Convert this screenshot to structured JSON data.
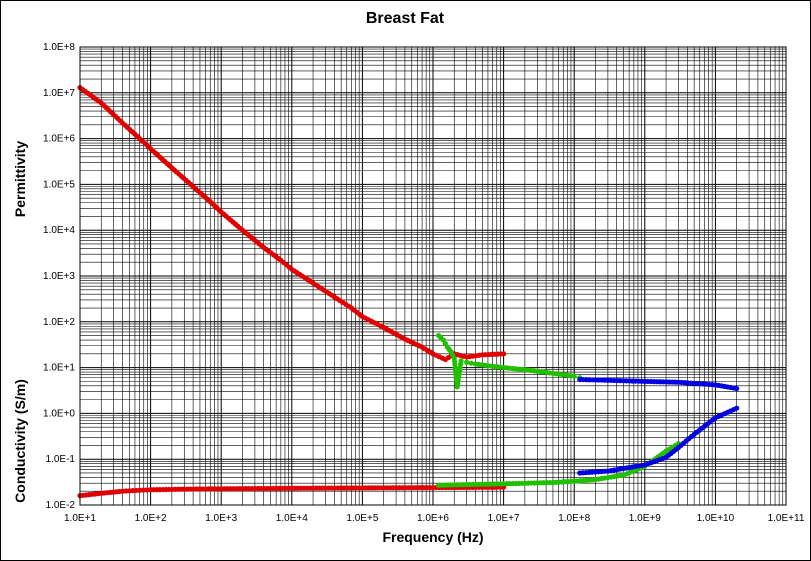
{
  "chart_data": {
    "type": "scatter",
    "title": "Breast Fat",
    "xlabel": "Frequency (Hz)",
    "ylabel_upper": "Permittivity",
    "ylabel_lower": "Conductivity (S/m)",
    "x_scale": "log",
    "y_scale": "log",
    "xlim": [
      10,
      100000000000
    ],
    "ylim": [
      0.01,
      100000000
    ],
    "x_ticks": [
      {
        "value": 10,
        "label": "1.0E+1"
      },
      {
        "value": 100,
        "label": "1.0E+2"
      },
      {
        "value": 1000,
        "label": "1.0E+3"
      },
      {
        "value": 10000,
        "label": "1.0E+4"
      },
      {
        "value": 100000,
        "label": "1.0E+5"
      },
      {
        "value": 1000000,
        "label": "1.0E+6"
      },
      {
        "value": 10000000,
        "label": "1.0E+7"
      },
      {
        "value": 100000000,
        "label": "1.0E+8"
      },
      {
        "value": 1000000000,
        "label": "1.0E+9"
      },
      {
        "value": 10000000000,
        "label": "1.0E+10"
      },
      {
        "value": 100000000000,
        "label": "1.0E+11"
      }
    ],
    "y_ticks": [
      {
        "value": 0.01,
        "label": "1.0E-2"
      },
      {
        "value": 0.1,
        "label": "1.0E-1"
      },
      {
        "value": 1,
        "label": "1.0E+0"
      },
      {
        "value": 10,
        "label": "1.0E+1"
      },
      {
        "value": 100,
        "label": "1.0E+2"
      },
      {
        "value": 1000,
        "label": "1.0E+3"
      },
      {
        "value": 10000,
        "label": "1.0E+4"
      },
      {
        "value": 100000,
        "label": "1.0E+5"
      },
      {
        "value": 1000000,
        "label": "1.0E+6"
      },
      {
        "value": 10000000,
        "label": "1.0E+7"
      },
      {
        "value": 100000000,
        "label": "1.0E+8"
      }
    ],
    "grid": {
      "major": true,
      "minor": true
    },
    "colors": {
      "red": "#e00000",
      "green": "#20c000",
      "blue": "#0000e0",
      "grid": "#000000"
    },
    "series": [
      {
        "color_key": "red",
        "quantity": "permittivity",
        "points": [
          [
            10,
            13000000
          ],
          [
            20,
            6000000
          ],
          [
            40,
            2200000
          ],
          [
            70,
            1000000
          ],
          [
            100,
            600000
          ],
          [
            200,
            230000
          ],
          [
            400,
            90000
          ],
          [
            700,
            42000
          ],
          [
            1000,
            25000
          ],
          [
            2000,
            10000
          ],
          [
            4000,
            4200
          ],
          [
            7000,
            2200
          ],
          [
            10000,
            1400
          ],
          [
            20000,
            700
          ],
          [
            40000,
            350
          ],
          [
            70000,
            200
          ],
          [
            100000,
            130
          ],
          [
            200000,
            75
          ],
          [
            400000,
            42
          ],
          [
            700000,
            28
          ],
          [
            1000000,
            20
          ],
          [
            1500000,
            15
          ],
          [
            2000000,
            20
          ],
          [
            3000000,
            17
          ],
          [
            5000000,
            19
          ],
          [
            10000000,
            20
          ]
        ]
      },
      {
        "color_key": "red",
        "quantity": "conductivity",
        "points": [
          [
            10,
            0.016
          ],
          [
            20,
            0.018
          ],
          [
            40,
            0.02
          ],
          [
            70,
            0.021
          ],
          [
            100,
            0.0215
          ],
          [
            300,
            0.0222
          ],
          [
            1000,
            0.0226
          ],
          [
            10000,
            0.0232
          ],
          [
            100000,
            0.0236
          ],
          [
            1000000,
            0.024
          ],
          [
            10000000,
            0.0245
          ]
        ]
      },
      {
        "color_key": "green",
        "quantity": "permittivity",
        "points": [
          [
            1200000,
            50
          ],
          [
            1400000,
            40
          ],
          [
            1600000,
            28
          ],
          [
            1800000,
            22
          ],
          [
            2000000,
            16
          ],
          [
            2200000,
            3.8
          ],
          [
            2500000,
            14
          ],
          [
            3000000,
            13
          ],
          [
            4000000,
            12
          ],
          [
            6000000,
            11
          ],
          [
            10000000,
            10
          ],
          [
            20000000,
            9
          ],
          [
            50000000,
            7.5
          ],
          [
            100000000,
            6.5
          ],
          [
            120000000,
            6
          ]
        ]
      },
      {
        "color_key": "green",
        "quantity": "conductivity",
        "points": [
          [
            1200000,
            0.027
          ],
          [
            3000000,
            0.028
          ],
          [
            10000000,
            0.029
          ],
          [
            50000000,
            0.031
          ],
          [
            100000000,
            0.033
          ],
          [
            200000000,
            0.036
          ],
          [
            500000000,
            0.045
          ],
          [
            1000000000,
            0.07
          ],
          [
            2000000000,
            0.15
          ],
          [
            3000000000,
            0.22
          ]
        ]
      },
      {
        "color_key": "blue",
        "quantity": "permittivity",
        "points": [
          [
            120000000,
            5.5
          ],
          [
            300000000,
            5.3
          ],
          [
            1000000000,
            5
          ],
          [
            3000000000,
            4.8
          ],
          [
            10000000000,
            4.2
          ],
          [
            20000000000,
            3.5
          ]
        ]
      },
      {
        "color_key": "blue",
        "quantity": "conductivity",
        "points": [
          [
            120000000,
            0.05
          ],
          [
            300000000,
            0.055
          ],
          [
            1000000000,
            0.075
          ],
          [
            2000000000,
            0.11
          ],
          [
            3000000000,
            0.18
          ],
          [
            5000000000,
            0.35
          ],
          [
            10000000000,
            0.8
          ],
          [
            20000000000,
            1.3
          ]
        ]
      }
    ]
  }
}
